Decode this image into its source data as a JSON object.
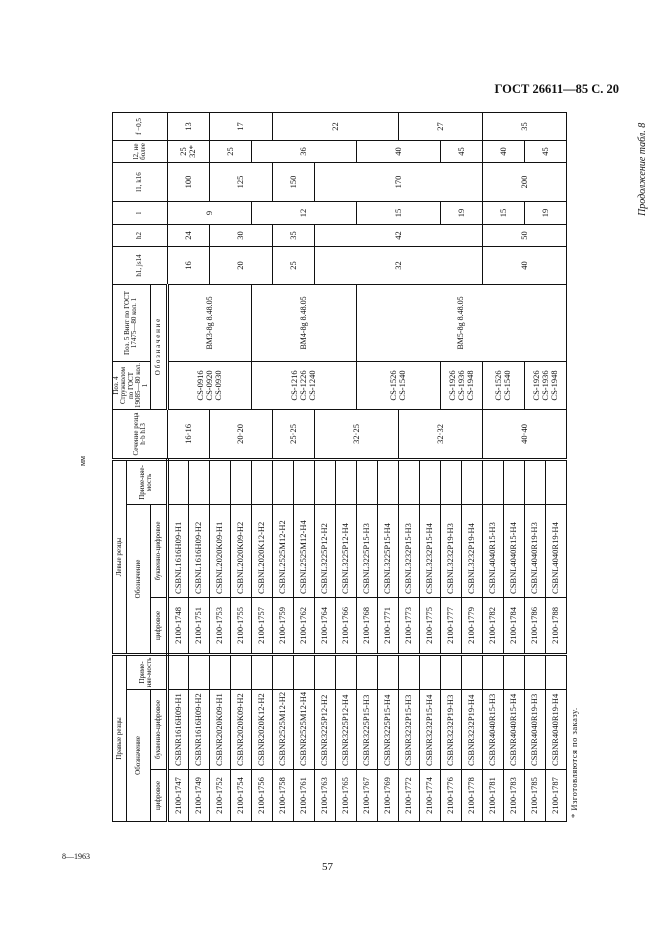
{
  "page_header": "ГОСТ 26611—85 С. 20",
  "continuation": "Продолжение табл. 8",
  "unit": "мм",
  "print_code": "8—1963",
  "page_number": "57",
  "footnote": "* Изготовляются по заказу.",
  "header": {
    "right_group": "Правые резцы",
    "left_group": "Левые резцы",
    "designation": "Обозначение",
    "digital": "цифровое",
    "alnum": "буквенно-цифровое",
    "applicability": "Приме-няе-мость",
    "section": "Сечение резца h·b h13",
    "poz4": "Поз. 4 Стружколом по ГОСТ 19085—80 кол. 1",
    "poz5": "Поз. 5 Винт по ГОСТ 17475—80 кол. 1",
    "oboznachenie": "О б о з н а ч е н и е",
    "h1": "h1, js14",
    "h2": "h2",
    "l": "l",
    "l1": "l1, k16",
    "l2": "l2, не более",
    "f": "f −0,5"
  },
  "rows": [
    {
      "right_digital": "2100-1747",
      "right_alnum": "CSBNR1616H09-H1",
      "left_digital": "2100-1748",
      "left_alnum": "CSBNL1616H09-H1"
    },
    {
      "right_digital": "2100-1749",
      "right_alnum": "CSBNR1616H09-H2",
      "left_digital": "2100-1751",
      "left_alnum": "CSBNL1616H09-H2"
    },
    {
      "right_digital": "2100-1752",
      "right_alnum": "CSBNR2020K09-H1",
      "left_digital": "2100-1753",
      "left_alnum": "CSBNL2020K09-H1"
    },
    {
      "right_digital": "2100-1754",
      "right_alnum": "CSBNR2020K09-H2",
      "left_digital": "2100-1755",
      "left_alnum": "CSBNL2020K09-H2"
    },
    {
      "right_digital": "2100-1756",
      "right_alnum": "CSBNR2020K12-H2",
      "left_digital": "2100-1757",
      "left_alnum": "CSBNL2020K12-H2"
    },
    {
      "right_digital": "2100-1758",
      "right_alnum": "CSBNR2525M12-H2",
      "left_digital": "2100-1759",
      "left_alnum": "CSBNL2525M12-H2"
    },
    {
      "right_digital": "2100-1761",
      "right_alnum": "CSBNR2525M12-H4",
      "left_digital": "2100-1762",
      "left_alnum": "CSBNL2525M12-H4"
    },
    {
      "right_digital": "2100-1763",
      "right_alnum": "CSBNR3225P12-H2",
      "left_digital": "2100-1764",
      "left_alnum": "CSBNL3225P12-H2"
    },
    {
      "right_digital": "2100-1765",
      "right_alnum": "CSBNR3225P12-H4",
      "left_digital": "2100-1766",
      "left_alnum": "CSBNL3225P12-H4"
    },
    {
      "right_digital": "2100-1767",
      "right_alnum": "CSBNR3225P15-H3",
      "left_digital": "2100-1768",
      "left_alnum": "CSBNL3225P15-H3"
    },
    {
      "right_digital": "2100-1769",
      "right_alnum": "CSBNR3225P15-H4",
      "left_digital": "2100-1771",
      "left_alnum": "CSBNL3225P15-H4"
    },
    {
      "right_digital": "2100-1772",
      "right_alnum": "CSBNR3232P15-H3",
      "left_digital": "2100-1773",
      "left_alnum": "CSBNL3232P15-H3"
    },
    {
      "right_digital": "2100-1774",
      "right_alnum": "CSBNR3232P15-H4",
      "left_digital": "2100-1775",
      "left_alnum": "CSBNL3232P15-H4"
    },
    {
      "right_digital": "2100-1776",
      "right_alnum": "CSBNR3232P19-H3",
      "left_digital": "2100-1777",
      "left_alnum": "CSBNL3232P19-H3"
    },
    {
      "right_digital": "2100-1778",
      "right_alnum": "CSBNR3232P19-H4",
      "left_digital": "2100-1779",
      "left_alnum": "CSBNL3232P19-H4"
    },
    {
      "right_digital": "2100-1781",
      "right_alnum": "CSBNR4040R15-H3",
      "left_digital": "2100-1782",
      "left_alnum": "CSBNL4040R15-H3"
    },
    {
      "right_digital": "2100-1783",
      "right_alnum": "CSBNR4040R15-H4",
      "left_digital": "2100-1784",
      "left_alnum": "CSBNL4040R15-H4"
    },
    {
      "right_digital": "2100-1785",
      "right_alnum": "CSBNR4040R19-H3",
      "left_digital": "2100-1786",
      "left_alnum": "CSBNL4040R19-H3"
    },
    {
      "right_digital": "2100-1787",
      "right_alnum": "CSBNR4040R19-H4",
      "left_digital": "2100-1788",
      "left_alnum": "CSBNL4040R19-H4"
    }
  ],
  "groups": {
    "section": [
      {
        "text": "16·16",
        "span": 2
      },
      {
        "text": "20·20",
        "span": 3
      },
      {
        "text": "25·25",
        "span": 2
      },
      {
        "text": "32·25",
        "span": 4
      },
      {
        "text": "32·32",
        "span": 4
      },
      {
        "text": "40·40",
        "span": 4
      }
    ],
    "poz4": [
      {
        "text": "CS-0916\nCS-0920\nCS-0930",
        "span": 4
      },
      {
        "text": "CS-1216\nCS-1226\nCS-1240",
        "span": 5
      },
      {
        "text": "CS-1526\nCS-1540",
        "span": 4
      },
      {
        "text": "CS-1926\nCS-1936\nCS-1948",
        "span": 2
      },
      {
        "text": "CS-1526\nCS-1540",
        "span": 2
      },
      {
        "text": "CS-1926\nCS-1936\nCS-1948",
        "span": 2
      }
    ],
    "poz5": [
      {
        "text": "BM3-8g 8.48.05",
        "span": 4
      },
      {
        "text": "BM4-8g 8.48.05",
        "span": 5
      },
      {
        "text": "BM5-8g 8.48.05",
        "span": 10
      }
    ],
    "h1": [
      {
        "text": "16",
        "span": 2
      },
      {
        "text": "20",
        "span": 3
      },
      {
        "text": "25",
        "span": 2
      },
      {
        "text": "32",
        "span": 8
      },
      {
        "text": "40",
        "span": 4
      }
    ],
    "h2": [
      {
        "text": "24",
        "span": 2
      },
      {
        "text": "30",
        "span": 3
      },
      {
        "text": "35",
        "span": 2
      },
      {
        "text": "42",
        "span": 8
      },
      {
        "text": "50",
        "span": 4
      }
    ],
    "l": [
      {
        "text": "9",
        "span": 4
      },
      {
        "text": "12",
        "span": 5
      },
      {
        "text": "15",
        "span": 4
      },
      {
        "text": "19",
        "span": 2
      },
      {
        "text": "15",
        "span": 2
      },
      {
        "text": "19",
        "span": 2
      }
    ],
    "l1": [
      {
        "text": "100",
        "span": 2
      },
      {
        "text": "125",
        "span": 3
      },
      {
        "text": "150",
        "span": 2
      },
      {
        "text": "170",
        "span": 8
      },
      {
        "text": "200",
        "span": 4
      }
    ],
    "l2": [
      {
        "text": "25\n32*",
        "span": 2
      },
      {
        "text": "25",
        "span": 2
      },
      {
        "text": "36",
        "span": 5
      },
      {
        "text": "40",
        "span": 4
      },
      {
        "text": "45",
        "span": 2
      },
      {
        "text": "40",
        "span": 2
      },
      {
        "text": "45",
        "span": 2
      }
    ],
    "f": [
      {
        "text": "13",
        "span": 2
      },
      {
        "text": "17",
        "span": 3
      },
      {
        "text": "22",
        "span": 6
      },
      {
        "text": "27",
        "span": 4
      },
      {
        "text": "35",
        "span": 4
      }
    ]
  }
}
